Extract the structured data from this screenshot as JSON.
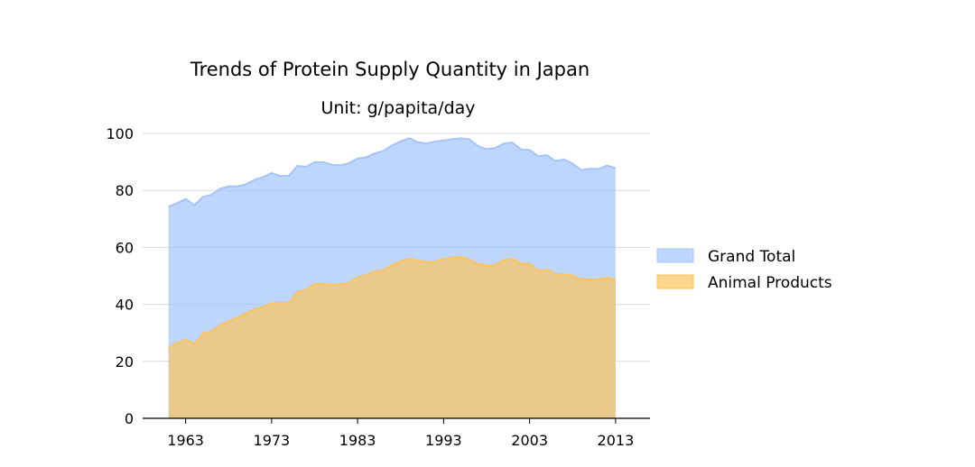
{
  "chart_data": {
    "type": "area",
    "title": "Trends of Protein Supply Quantity in Japan",
    "subtitle": "Unit: g/papita/day",
    "xlabel": "",
    "ylabel": "",
    "xlim": [
      1958,
      2017
    ],
    "ylim": [
      0,
      100
    ],
    "x_ticks": [
      1963,
      1973,
      1983,
      1993,
      2003,
      2013
    ],
    "y_ticks": [
      0,
      20,
      40,
      60,
      80,
      100
    ],
    "grid": "horizontal",
    "legend_position": "right",
    "x": [
      1961,
      1962,
      1963,
      1964,
      1965,
      1966,
      1967,
      1968,
      1969,
      1970,
      1971,
      1972,
      1973,
      1974,
      1975,
      1976,
      1977,
      1978,
      1979,
      1980,
      1981,
      1982,
      1983,
      1984,
      1985,
      1986,
      1987,
      1988,
      1989,
      1990,
      1991,
      1992,
      1993,
      1994,
      1995,
      1996,
      1997,
      1998,
      1999,
      2000,
      2001,
      2002,
      2003,
      2004,
      2005,
      2006,
      2007,
      2008,
      2009,
      2010,
      2011,
      2012,
      2013
    ],
    "series": [
      {
        "name": "Grand Total",
        "color": "#a4c4fb",
        "values": [
          74.3,
          75.5,
          77.0,
          74.8,
          77.7,
          78.5,
          80.6,
          81.4,
          81.4,
          82.1,
          83.7,
          84.7,
          86.1,
          85.1,
          85.1,
          88.6,
          88.3,
          89.9,
          89.9,
          89.0,
          88.8,
          89.6,
          91.2,
          91.6,
          93.0,
          93.8,
          95.8,
          97.2,
          98.3,
          96.9,
          96.5,
          97.1,
          97.5,
          98.0,
          98.3,
          97.9,
          95.6,
          94.5,
          94.9,
          96.5,
          96.8,
          94.4,
          94.2,
          92.0,
          92.4,
          90.3,
          90.9,
          89.4,
          87.1,
          87.6,
          87.5,
          88.7,
          87.8
        ]
      },
      {
        "name": "Animal Products",
        "color": "#fcc45d",
        "values": [
          24.8,
          26.5,
          27.6,
          26.0,
          29.9,
          30.6,
          32.7,
          34.1,
          35.4,
          36.8,
          38.4,
          39.1,
          40.4,
          40.6,
          40.5,
          44.5,
          45.1,
          47.2,
          47.2,
          46.9,
          47.1,
          47.6,
          49.5,
          50.3,
          51.6,
          52.0,
          53.9,
          55.1,
          56.0,
          55.4,
          54.9,
          55.0,
          55.9,
          56.4,
          56.6,
          55.6,
          54.1,
          53.7,
          53.8,
          55.6,
          56.0,
          54.3,
          54.2,
          51.7,
          52.2,
          50.5,
          50.5,
          50.1,
          48.7,
          48.8,
          48.7,
          49.4,
          48.6
        ]
      }
    ]
  }
}
